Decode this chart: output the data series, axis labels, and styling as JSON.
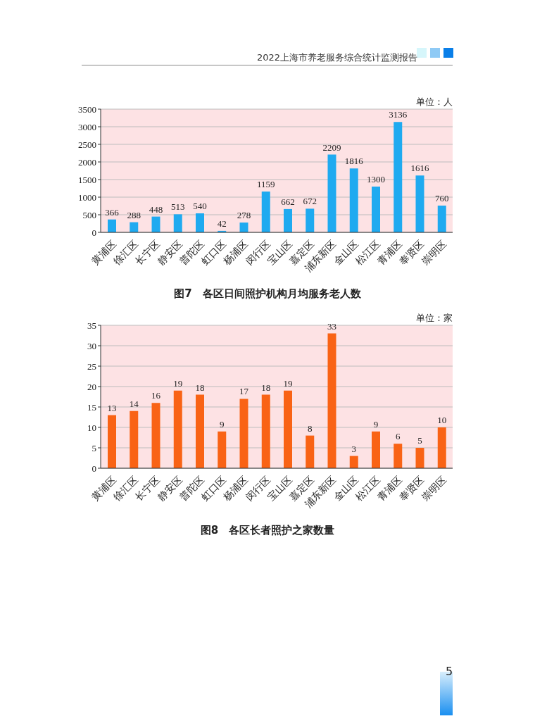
{
  "chart_data": [
    {
      "type": "bar",
      "title": "图7　各区日间照护机构月均服务老人数",
      "ylabel": "单位：人",
      "categories": [
        "黄浦区",
        "徐汇区",
        "长宁区",
        "静安区",
        "普陀区",
        "虹口区",
        "杨浦区",
        "闵行区",
        "宝山区",
        "嘉定区",
        "浦东新区",
        "金山区",
        "松江区",
        "青浦区",
        "奉贤区",
        "崇明区"
      ],
      "values": [
        366,
        288,
        448,
        513,
        540,
        42,
        278,
        1159,
        662,
        672,
        2209,
        1816,
        1300,
        3136,
        1616,
        760
      ],
      "color": "#1faaf0",
      "ylim": [
        0,
        3500
      ],
      "yticks": [
        0,
        500,
        1000,
        1500,
        2000,
        2500,
        3000,
        3500
      ],
      "grid": "y",
      "data_labels": true,
      "legend": false,
      "annotations": [
        "2022上海市养老服务综合统计监测报告"
      ]
    },
    {
      "type": "bar",
      "title": "图8　各区长者照护之家数量",
      "ylabel": "单位：家",
      "categories": [
        "黄浦区",
        "徐汇区",
        "长宁区",
        "静安区",
        "普陀区",
        "虹口区",
        "杨浦区",
        "闵行区",
        "宝山区",
        "嘉定区",
        "浦东新区",
        "金山区",
        "松江区",
        "青浦区",
        "奉贤区",
        "崇明区"
      ],
      "values": [
        13,
        14,
        16,
        19,
        18,
        9,
        17,
        18,
        19,
        8,
        33,
        3,
        9,
        6,
        5,
        10
      ],
      "color": "#f96315",
      "ylim": [
        0,
        35
      ],
      "yticks": [
        0,
        5,
        10,
        15,
        20,
        25,
        30,
        35
      ],
      "grid": "y",
      "data_labels": true,
      "legend": false,
      "annotations": [
        "5"
      ]
    }
  ]
}
